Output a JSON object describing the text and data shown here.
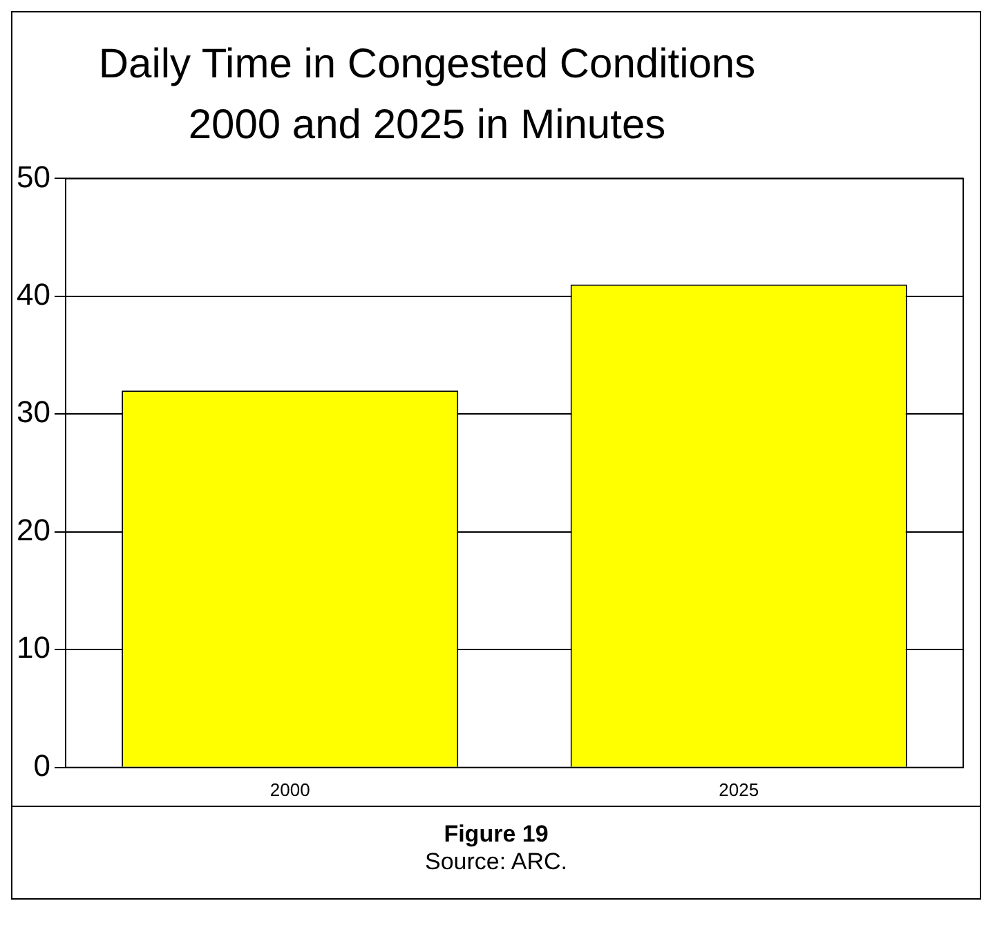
{
  "chart_data": {
    "type": "bar",
    "title": "Daily Time in Congested Conditions 2000 and 2025 in Minutes",
    "categories": [
      "2000",
      "2025"
    ],
    "values": [
      32,
      41
    ],
    "color": "#ffff00",
    "ylim": [
      0,
      50
    ],
    "yticks": [
      0,
      10,
      20,
      30,
      40,
      50
    ],
    "grid": "y",
    "annotations": [
      "Figure 19",
      "Source: ARC."
    ]
  }
}
